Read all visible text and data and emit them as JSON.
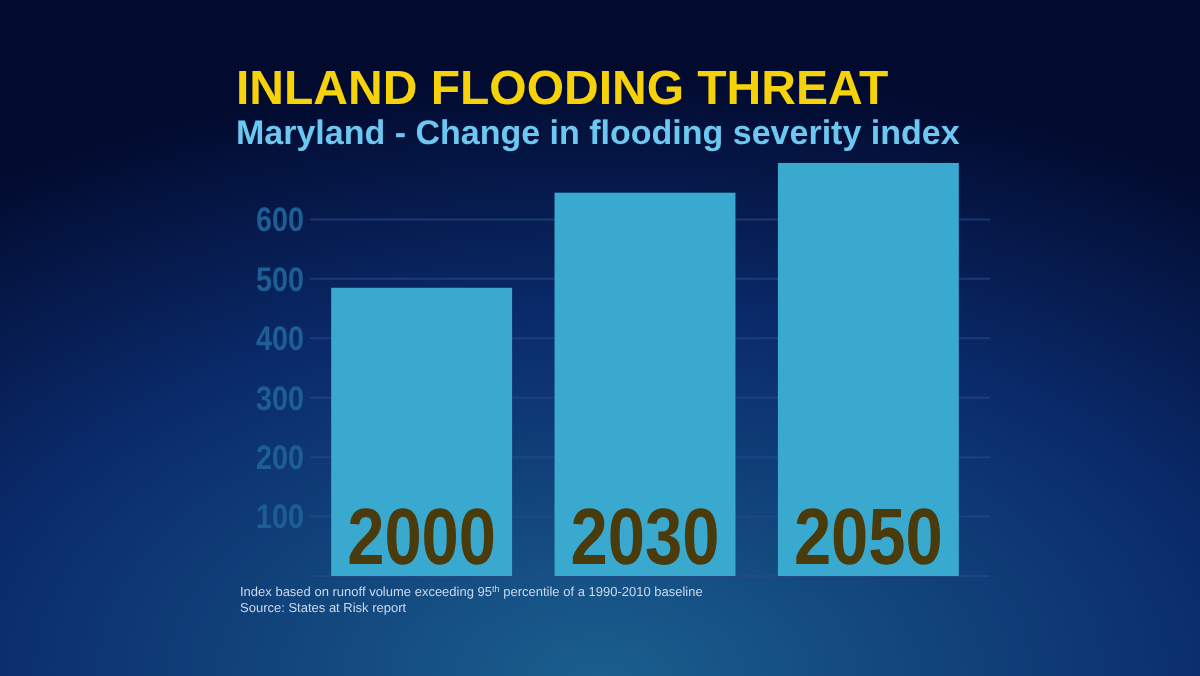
{
  "chart_data": {
    "type": "bar",
    "title": "INLAND FLOODING THREAT",
    "subtitle": "Maryland - Change in flooding severity index",
    "categories": [
      "2000",
      "2030",
      "2050"
    ],
    "values": [
      485,
      645,
      695
    ],
    "color": "#3aa9d0",
    "ylim": [
      0,
      700
    ],
    "yticks": [
      {
        "value": 0,
        "label": null
      },
      100,
      200,
      300,
      400,
      500,
      600
    ],
    "grid": "y",
    "annotations": [
      "Index based on runoff volume exceeding 95$^{th}$ percentile of a 1990-2010 baseline",
      "Source:  States at Risk report"
    ]
  }
}
